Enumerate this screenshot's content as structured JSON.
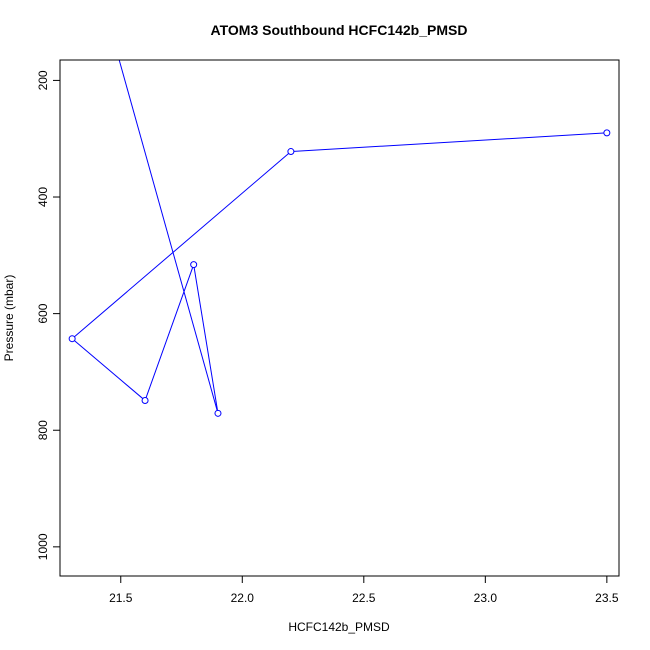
{
  "chart_data": {
    "type": "line",
    "title": "ATOM3 Southbound HCFC142b_PMSD",
    "xlabel": "HCFC142b_PMSD",
    "ylabel": "Pressure (mbar)",
    "xlim": [
      21.25,
      23.55
    ],
    "ylim": [
      1050,
      165
    ],
    "y_reversed": true,
    "x_ticks": [
      21.5,
      22.0,
      22.5,
      23.0,
      23.5
    ],
    "x_tick_labels": [
      "21.5",
      "22.0",
      "22.5",
      "23.0",
      "23.5"
    ],
    "y_ticks": [
      200,
      400,
      600,
      800,
      1000
    ],
    "y_tick_labels": [
      "200",
      "400",
      "600",
      "800",
      "1000"
    ],
    "grid": false,
    "color": "#0000ff",
    "series": [
      {
        "points": [
          {
            "x": 23.5,
            "y": 290
          },
          {
            "x": 22.2,
            "y": 322
          },
          {
            "x": 21.3,
            "y": 643
          },
          {
            "x": 21.6,
            "y": 749
          },
          {
            "x": 21.8,
            "y": 516
          },
          {
            "x": 21.9,
            "y": 771
          },
          {
            "x": 21.45,
            "y": 100
          }
        ],
        "marker_count": 6
      }
    ]
  }
}
